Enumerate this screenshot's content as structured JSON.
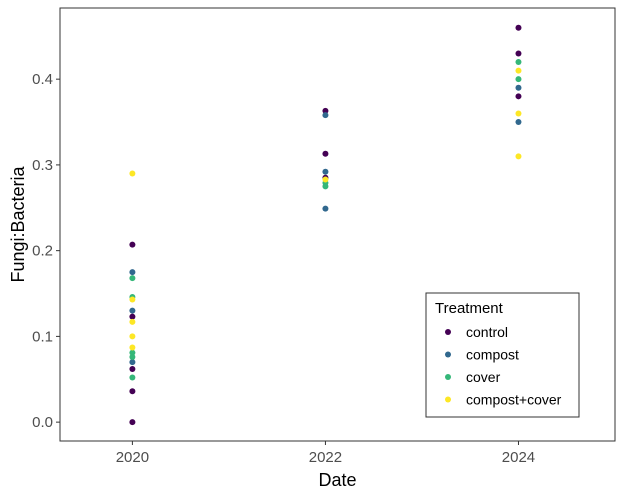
{
  "chart_data": {
    "type": "scatter",
    "xlabel": "Date",
    "ylabel": "Fungi:Bacteria",
    "x_ticks": [
      "2020",
      "2022",
      "2024"
    ],
    "y_ticks": [
      "0.0",
      "0.1",
      "0.2",
      "0.3",
      "0.4"
    ],
    "xlim": [
      2019.25,
      2025.0
    ],
    "ylim": [
      -0.022,
      0.483
    ],
    "grid": false,
    "legend": {
      "title": "Treatment",
      "position": "bottom-right"
    },
    "series": [
      {
        "name": "control",
        "color": "#440154",
        "points": [
          [
            2020,
            0.207
          ],
          [
            2020,
            0.123
          ],
          [
            2020,
            0.062
          ],
          [
            2020,
            0.036
          ],
          [
            2020,
            0.0
          ],
          [
            2022,
            0.363
          ],
          [
            2022,
            0.313
          ],
          [
            2022,
            0.285
          ],
          [
            2024,
            0.46
          ],
          [
            2024,
            0.43
          ],
          [
            2024,
            0.38
          ]
        ]
      },
      {
        "name": "compost",
        "color": "#31688E",
        "points": [
          [
            2020,
            0.175
          ],
          [
            2020,
            0.13
          ],
          [
            2020,
            0.07
          ],
          [
            2022,
            0.358
          ],
          [
            2022,
            0.292
          ],
          [
            2022,
            0.249
          ],
          [
            2024,
            0.39
          ],
          [
            2024,
            0.35
          ]
        ]
      },
      {
        "name": "cover",
        "color": "#35B779",
        "points": [
          [
            2020,
            0.168
          ],
          [
            2020,
            0.146
          ],
          [
            2020,
            0.081
          ],
          [
            2020,
            0.076
          ],
          [
            2020,
            0.052
          ],
          [
            2022,
            0.279
          ],
          [
            2022,
            0.275
          ],
          [
            2024,
            0.42
          ],
          [
            2024,
            0.4
          ]
        ]
      },
      {
        "name": "compost+cover",
        "color": "#FDE725",
        "points": [
          [
            2020,
            0.29
          ],
          [
            2020,
            0.143
          ],
          [
            2020,
            0.117
          ],
          [
            2020,
            0.1
          ],
          [
            2020,
            0.087
          ],
          [
            2022,
            0.283
          ],
          [
            2024,
            0.41
          ],
          [
            2024,
            0.36
          ],
          [
            2024,
            0.31
          ]
        ]
      }
    ]
  }
}
